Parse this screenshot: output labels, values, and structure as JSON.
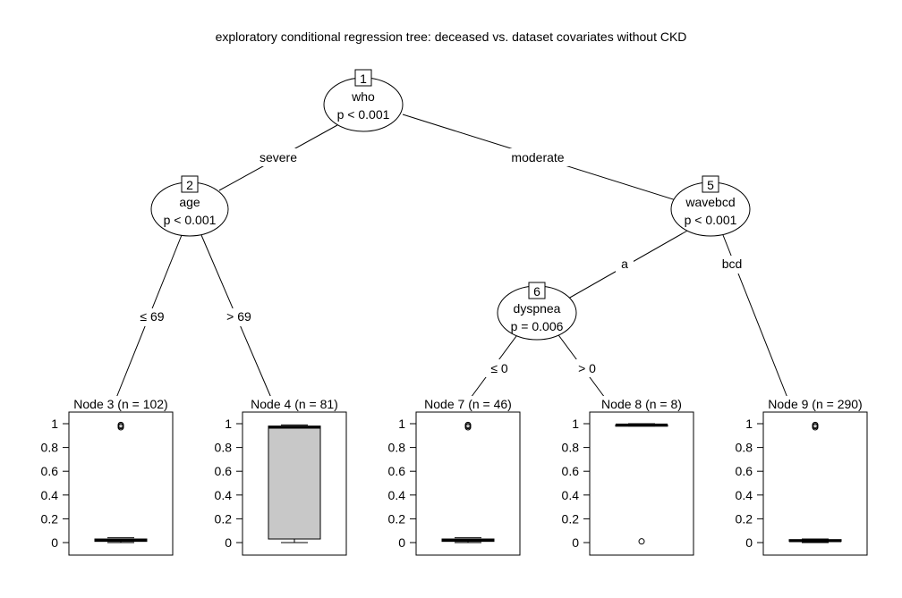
{
  "title": "exploratory conditional regression tree: deceased vs. dataset covariates without CKD",
  "inner_nodes": [
    {
      "id": "1",
      "variable": "who",
      "pvalue": "p < 0.001"
    },
    {
      "id": "2",
      "variable": "age",
      "pvalue": "p < 0.001"
    },
    {
      "id": "5",
      "variable": "wavebcd",
      "pvalue": "p < 0.001"
    },
    {
      "id": "6",
      "variable": "dyspnea",
      "pvalue": "p = 0.006"
    }
  ],
  "edges": [
    {
      "from": "1",
      "to": "2",
      "label": "severe"
    },
    {
      "from": "1",
      "to": "5",
      "label": "moderate"
    },
    {
      "from": "2",
      "to": "3",
      "label": "≤ 69"
    },
    {
      "from": "2",
      "to": "4",
      "label": "> 69"
    },
    {
      "from": "5",
      "to": "6",
      "label": "a"
    },
    {
      "from": "5",
      "to": "9",
      "label": "bcd"
    },
    {
      "from": "6",
      "to": "7",
      "label": "≤ 0"
    },
    {
      "from": "6",
      "to": "8",
      "label": "> 0"
    }
  ],
  "terminal_nodes": [
    {
      "id": "3",
      "label": "Node 3 (n = 102)",
      "q1": 0.01,
      "median": 0.02,
      "q3": 0.03,
      "whisker_low": 0.0,
      "whisker_high": 0.04,
      "outliers": [
        0.97,
        0.98,
        0.99
      ]
    },
    {
      "id": "4",
      "label": "Node 4 (n = 81)",
      "q1": 0.03,
      "median": 0.97,
      "q3": 0.98,
      "whisker_low": 0.0,
      "whisker_high": 0.99,
      "outliers": []
    },
    {
      "id": "7",
      "label": "Node 7 (n = 46)",
      "q1": 0.01,
      "median": 0.02,
      "q3": 0.03,
      "whisker_low": 0.0,
      "whisker_high": 0.04,
      "outliers": [
        0.97,
        0.98,
        0.99
      ]
    },
    {
      "id": "8",
      "label": "Node 8 (n = 8)",
      "q1": 0.98,
      "median": 0.99,
      "q3": 0.99,
      "whisker_low": 0.98,
      "whisker_high": 1.0,
      "outliers": [
        0.01
      ]
    },
    {
      "id": "9",
      "label": "Node 9 (n = 290)",
      "q1": 0.01,
      "median": 0.015,
      "q3": 0.025,
      "whisker_low": 0.0,
      "whisker_high": 0.03,
      "outliers": [
        0.97,
        0.98,
        0.99
      ]
    }
  ],
  "y_ticks": [
    "0",
    "0.2",
    "0.4",
    "0.6",
    "0.8",
    "1"
  ],
  "colors": {
    "box_fill": "#c8c8c8",
    "line": "#000000"
  }
}
